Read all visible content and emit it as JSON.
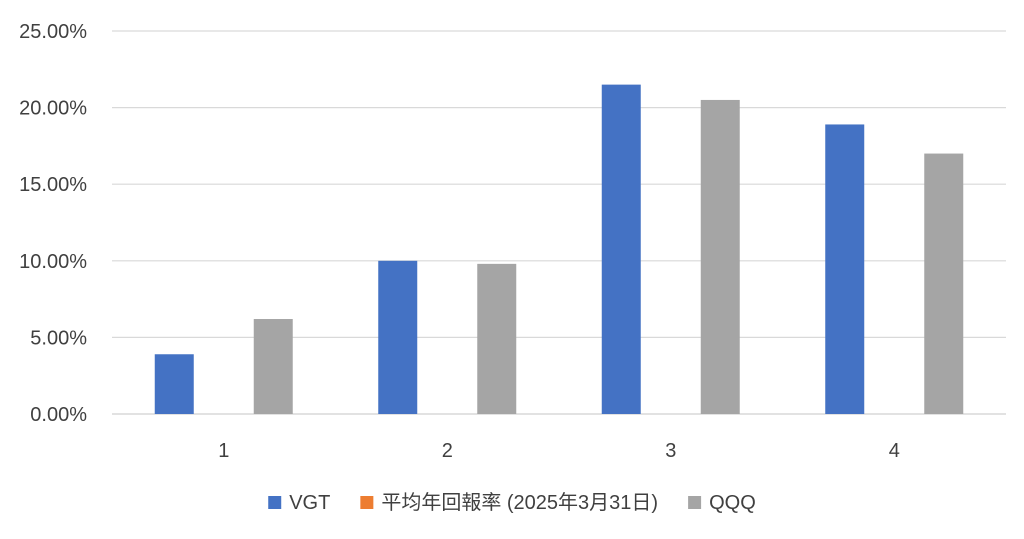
{
  "chart_data": {
    "type": "bar",
    "title": "",
    "xlabel": "",
    "ylabel": "",
    "categories": [
      "1",
      "2",
      "3",
      "4"
    ],
    "series": [
      {
        "name": "VGT",
        "color": "#4472C4",
        "values": [
          0.039,
          0.1,
          0.215,
          0.189
        ]
      },
      {
        "name": "平均年回報率 (2025年3月31日)",
        "color": "#ED7D31",
        "values": [
          null,
          null,
          null,
          null
        ]
      },
      {
        "name": "QQQ",
        "color": "#A5A5A5",
        "values": [
          0.062,
          0.098,
          0.205,
          0.17
        ]
      }
    ],
    "ylim": [
      0,
      0.25
    ],
    "yticks": [
      0,
      0.05,
      0.1,
      0.15,
      0.2,
      0.25
    ],
    "ytick_labels": [
      "0.00%",
      "5.00%",
      "10.00%",
      "15.00%",
      "20.00%",
      "25.00%"
    ],
    "grid": true,
    "legend_position": "bottom"
  }
}
